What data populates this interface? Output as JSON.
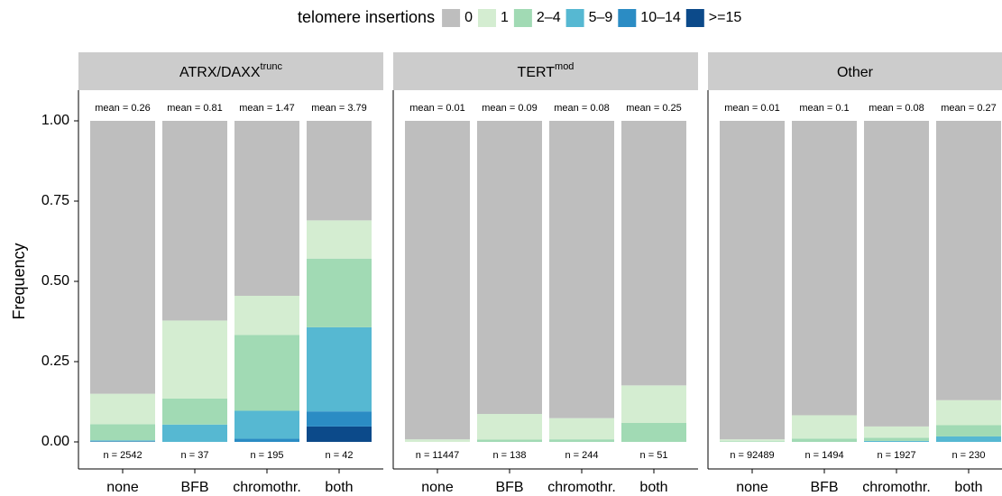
{
  "chart_data": [
    {
      "type": "stacked_bar",
      "title": "ATRX/DAXX",
      "title_sup": "trunc",
      "y_label": "Frequency",
      "legend_title": "telomere insertions",
      "categories": [
        "none",
        "BFB",
        "chromothr.",
        "both"
      ],
      "mean_labels": [
        "mean = 0.26",
        "mean = 0.81",
        "mean = 1.47",
        "mean = 3.79"
      ],
      "n_labels": [
        "n = 2542",
        "n = 37",
        "n = 195",
        "n = 42"
      ],
      "ylim": [
        0,
        1
      ],
      "yticks": [
        {
          "value": 0,
          "label": "0.00"
        },
        {
          "value": 0.25,
          "label": "0.25"
        },
        {
          "value": 0.5,
          "label": "0.50"
        },
        {
          "value": 0.75,
          "label": "0.75"
        },
        {
          "value": 1,
          "label": "1.00"
        }
      ],
      "series": [
        {
          "name": "0",
          "color": "#bebebe",
          "values": [
            0.85,
            0.622,
            0.545,
            0.31
          ]
        },
        {
          "name": "1",
          "color": "#d4edd1",
          "values": [
            0.095,
            0.243,
            0.122,
            0.119
          ]
        },
        {
          "name": "2–4",
          "color": "#a1dab4",
          "values": [
            0.05,
            0.081,
            0.236,
            0.214
          ]
        },
        {
          "name": "5–9",
          "color": "#56b8d2",
          "values": [
            0.003,
            0.054,
            0.087,
            0.262
          ]
        },
        {
          "name": "10–14",
          "color": "#2b8cc4",
          "values": [
            0.001,
            0,
            0.01,
            0.047
          ]
        },
        {
          "name": ">=15",
          "color": "#0c4a8a",
          "values": [
            0.001,
            0,
            0,
            0.048
          ]
        }
      ]
    },
    {
      "type": "stacked_bar",
      "title": "TERT",
      "title_sup": "mod",
      "categories": [
        "none",
        "BFB",
        "chromothr.",
        "both"
      ],
      "mean_labels": [
        "mean = 0.01",
        "mean = 0.09",
        "mean = 0.08",
        "mean = 0.25"
      ],
      "n_labels": [
        "n = 11447",
        "n = 138",
        "n = 244",
        "n = 51"
      ],
      "ylim": [
        0,
        1
      ],
      "series": [
        {
          "name": "0",
          "color": "#bebebe",
          "values": [
            0.992,
            0.913,
            0.926,
            0.824
          ]
        },
        {
          "name": "1",
          "color": "#d4edd1",
          "values": [
            0.008,
            0.08,
            0.066,
            0.117
          ]
        },
        {
          "name": "2–4",
          "color": "#a1dab4",
          "values": [
            0,
            0.007,
            0.008,
            0.059
          ]
        },
        {
          "name": "5–9",
          "color": "#56b8d2",
          "values": [
            0,
            0,
            0,
            0
          ]
        },
        {
          "name": "10–14",
          "color": "#2b8cc4",
          "values": [
            0,
            0,
            0,
            0
          ]
        },
        {
          "name": ">=15",
          "color": "#0c4a8a",
          "values": [
            0,
            0,
            0,
            0
          ]
        }
      ]
    },
    {
      "type": "stacked_bar",
      "title": "Other",
      "categories": [
        "none",
        "BFB",
        "chromothr.",
        "both"
      ],
      "mean_labels": [
        "mean = 0.01",
        "mean = 0.1",
        "mean = 0.08",
        "mean = 0.27"
      ],
      "n_labels": [
        "n = 92489",
        "n = 1494",
        "n = 1927",
        "n = 230"
      ],
      "ylim": [
        0,
        1
      ],
      "series": [
        {
          "name": "0",
          "color": "#bebebe",
          "values": [
            0.992,
            0.917,
            0.952,
            0.87
          ]
        },
        {
          "name": "1",
          "color": "#d4edd1",
          "values": [
            0.006,
            0.073,
            0.035,
            0.078
          ]
        },
        {
          "name": "2–4",
          "color": "#a1dab4",
          "values": [
            0.002,
            0.01,
            0.01,
            0.035
          ]
        },
        {
          "name": "5–9",
          "color": "#56b8d2",
          "values": [
            0,
            0,
            0.003,
            0.017
          ]
        },
        {
          "name": "10–14",
          "color": "#2b8cc4",
          "values": [
            0,
            0,
            0,
            0
          ]
        },
        {
          "name": ">=15",
          "color": "#0c4a8a",
          "values": [
            0,
            0,
            0,
            0
          ]
        }
      ]
    }
  ]
}
